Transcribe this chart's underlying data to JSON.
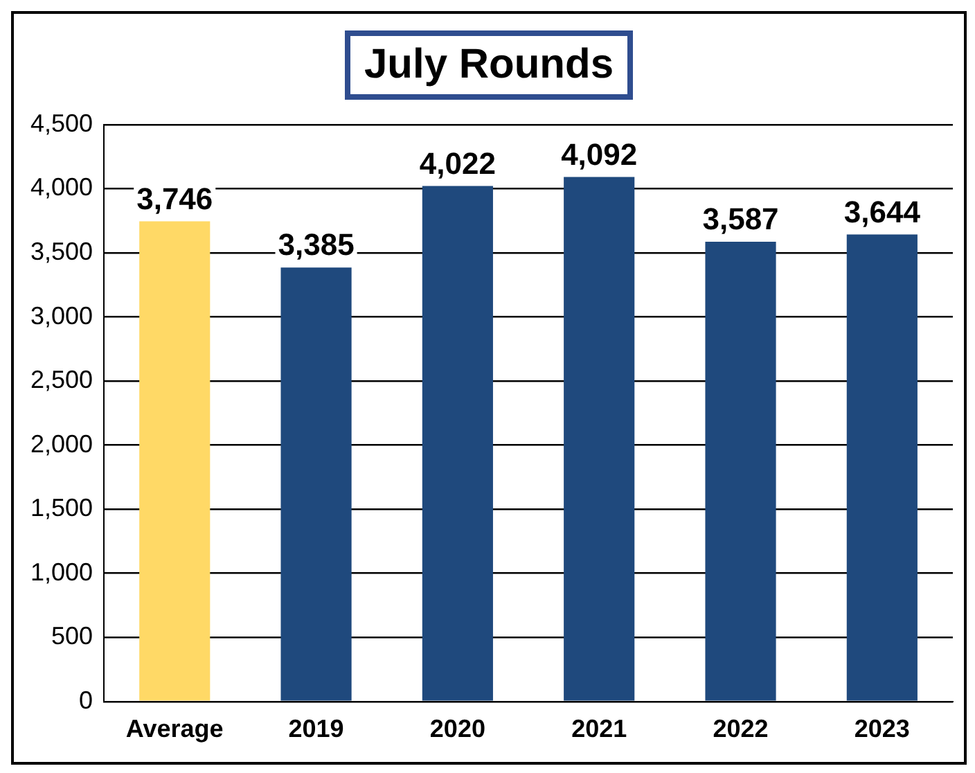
{
  "chart_data": {
    "type": "bar",
    "title": "July Rounds",
    "categories": [
      "Average",
      "2019",
      "2020",
      "2021",
      "2022",
      "2023"
    ],
    "values": [
      3746,
      3385,
      4022,
      4092,
      3587,
      3644
    ],
    "value_labels": [
      "3,746",
      "3,385",
      "4,022",
      "4,092",
      "3,587",
      "3,644"
    ],
    "colors": [
      "#ffd966",
      "#1f497d",
      "#1f497d",
      "#1f497d",
      "#1f497d",
      "#1f497d"
    ],
    "ylim": [
      0,
      4500
    ],
    "yticks": [
      0,
      500,
      {
        "value": 1000,
        "label": "1,000"
      },
      {
        "value": 1500,
        "label": "1,500"
      },
      {
        "value": 2000,
        "label": "2,000"
      },
      {
        "value": 2500,
        "label": "2,500"
      },
      {
        "value": 3000,
        "label": "3,000"
      },
      {
        "value": 3500,
        "label": "3,500"
      },
      {
        "value": 4000,
        "label": "4,000"
      },
      {
        "value": 4500,
        "label": "4,500"
      }
    ],
    "grid": "y"
  }
}
